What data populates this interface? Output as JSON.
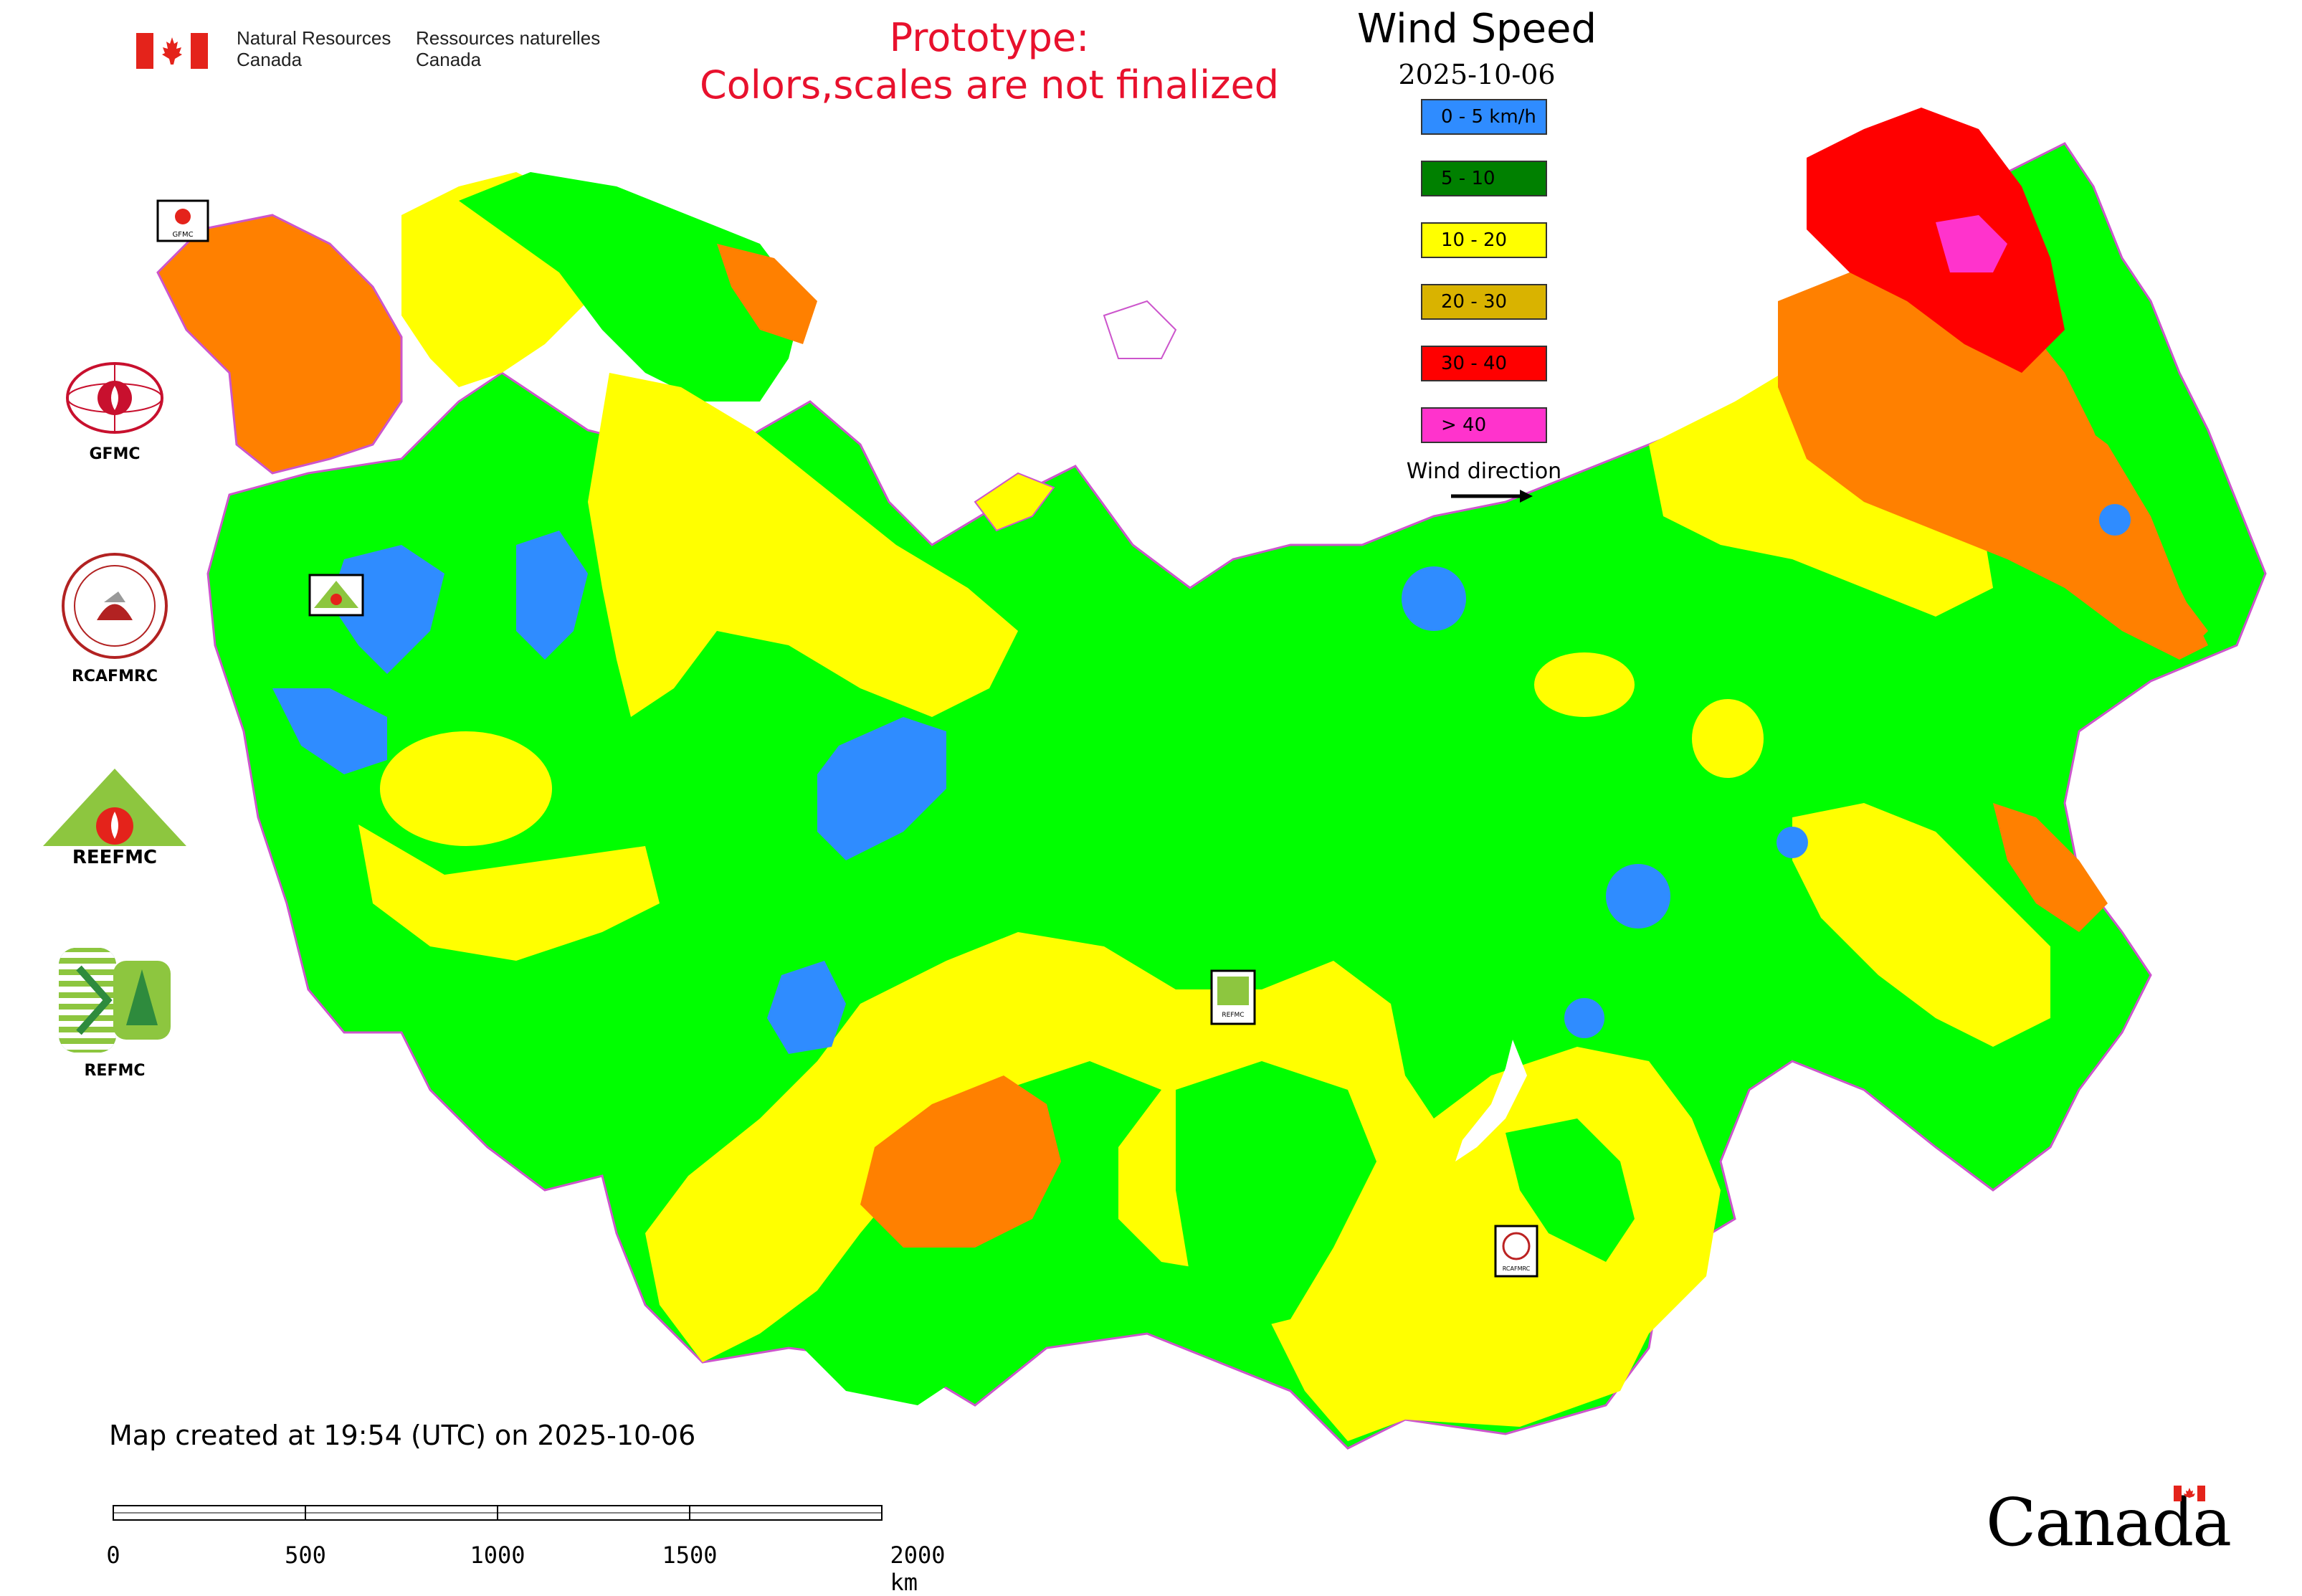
{
  "header": {
    "dept_en": [
      "Natural Resources",
      "Canada"
    ],
    "dept_fr": [
      "Ressources naturelles",
      "Canada"
    ],
    "prototype_notice": [
      "Prototype:",
      "Colors,scales are not finalized"
    ]
  },
  "legend": {
    "title": "Wind Speed",
    "date": "2025-10-06",
    "items": [
      {
        "label": "0 - 5 km/h",
        "color": "#2f8cff"
      },
      {
        "label": "5 - 10",
        "color": "#008000"
      },
      {
        "label": "10 - 20",
        "color": "#ffff00"
      },
      {
        "label": "20 - 30",
        "color": "#d9b300"
      },
      {
        "label": "30 - 40",
        "color": "#ff0000"
      },
      {
        "label": "> 40",
        "color": "#ff33cc"
      }
    ],
    "wind_direction_label": "Wind direction"
  },
  "logos": [
    {
      "name": "GFMC"
    },
    {
      "name": "RCAFMRC"
    },
    {
      "name": "REEFMC"
    },
    {
      "name": "REFMC"
    }
  ],
  "map_markers": [
    "GFMC",
    "REEFMC",
    "REFMC",
    "RCAFMRC"
  ],
  "map_colors": {
    "land_green": "#00ff00",
    "yellow": "#ffff00",
    "orange": "#ff8000",
    "red": "#ff0000",
    "magenta": "#ff33cc",
    "blue": "#2f8cff",
    "border": "#cc55cc"
  },
  "footer": {
    "created": "Map created at 19:54 (UTC) on 2025-10-06",
    "scale_labels": [
      "0",
      "500",
      "1000",
      "1500",
      "2000 km"
    ],
    "wordmark": "Canada"
  }
}
